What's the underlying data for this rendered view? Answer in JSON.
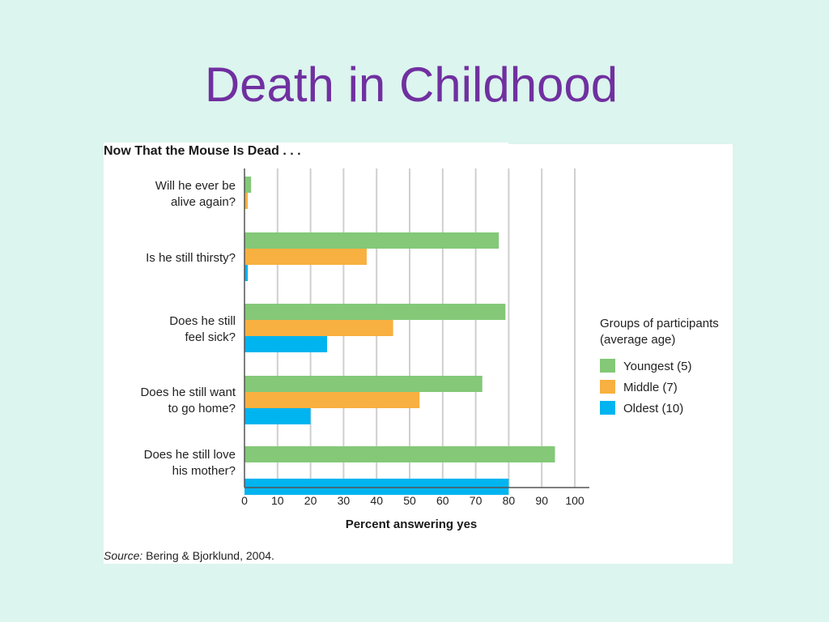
{
  "slide": {
    "title": "Death in Childhood"
  },
  "figure": {
    "source_label": "Source:",
    "source_text": " Bering & Bjorklund, 2004."
  },
  "colors": {
    "title": "#7030a0",
    "youngest": "#84c878",
    "middle": "#f8b040",
    "oldest": "#00b4f0",
    "grid": "#cfcfcf",
    "background": "#dcf5ee"
  },
  "chart_data": {
    "type": "bar",
    "orientation": "horizontal",
    "title": "Now That the Mouse Is Dead . . .",
    "xlabel": "Percent answering yes",
    "xlim": [
      0,
      100
    ],
    "xticks": [
      0,
      10,
      20,
      30,
      40,
      50,
      60,
      70,
      80,
      90,
      100
    ],
    "grid": true,
    "categories": [
      [
        "Will he ever be",
        "alive again?"
      ],
      [
        "Is he still thirsty?"
      ],
      [
        "Does he still",
        "feel sick?"
      ],
      [
        "Does he still want",
        "to go home?"
      ],
      [
        "Does he still love",
        "his mother?"
      ]
    ],
    "series": [
      {
        "name": "Youngest (5)",
        "color": "#84c878",
        "values": [
          2,
          77,
          79,
          72,
          94
        ]
      },
      {
        "name": "Middle (7)",
        "color": "#f8b040",
        "values": [
          1,
          37,
          45,
          53,
          0
        ]
      },
      {
        "name": "Oldest (10)",
        "color": "#00b4f0",
        "values": [
          0,
          1,
          25,
          20,
          80
        ]
      }
    ],
    "legend": {
      "title": [
        "Groups of participants",
        "(average age)"
      ],
      "position": "right"
    }
  }
}
